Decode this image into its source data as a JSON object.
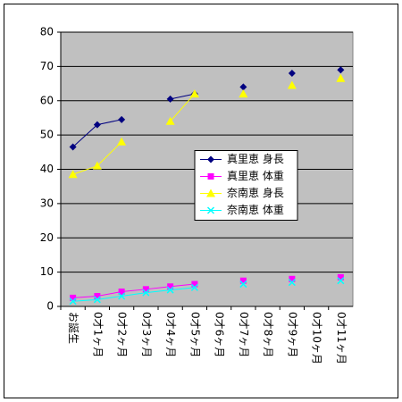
{
  "chart_data": {
    "type": "line",
    "categories": [
      "お誕生",
      "0才1ヶ月",
      "0才2ヶ月",
      "0才3ヶ月",
      "0才4ヶ月",
      "0才5ヶ月",
      "0才6ヶ月",
      "0才7ヶ月",
      "0才8ヶ月",
      "0才9ヶ月",
      "0才10ヶ月",
      "0才11ヶ月"
    ],
    "series": [
      {
        "name": "真里恵 身長",
        "color": "#000080",
        "marker": "diamond",
        "values": [
          46.5,
          53,
          54.5,
          null,
          60.5,
          62,
          null,
          64,
          null,
          68,
          null,
          69
        ]
      },
      {
        "name": "真里恵 体重",
        "color": "#ff00ff",
        "marker": "square",
        "values": [
          2.5,
          3,
          4.3,
          5,
          5.8,
          6.5,
          null,
          7.5,
          null,
          8,
          null,
          8.5
        ]
      },
      {
        "name": "奈南恵 身長",
        "color": "#ffff00",
        "marker": "triangle",
        "values": [
          38.5,
          41,
          48,
          null,
          54,
          62,
          null,
          62,
          null,
          64.5,
          null,
          66.5
        ]
      },
      {
        "name": "奈南恵 体重",
        "color": "#00ffff",
        "marker": "x",
        "values": [
          1.5,
          2,
          3,
          4,
          4.8,
          5.5,
          null,
          6.5,
          null,
          7,
          null,
          7.5
        ]
      }
    ],
    "ylim": [
      0,
      80
    ],
    "yticks": [
      0,
      10,
      20,
      30,
      40,
      50,
      60,
      70,
      80
    ],
    "grid": true,
    "legend": "right",
    "plot_background": "#c0c0c0"
  }
}
